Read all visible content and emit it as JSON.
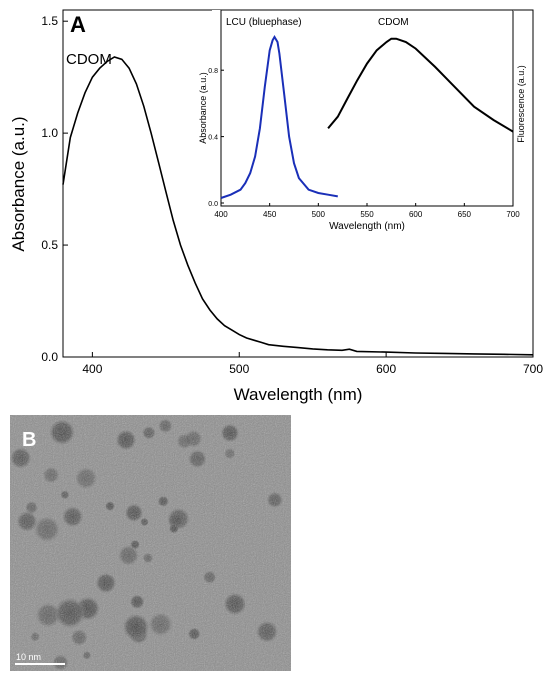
{
  "panel_a_label": "A",
  "panel_b_label": "B",
  "scale_bar_label": "10 nm",
  "chart_data": [
    {
      "type": "line",
      "panel": "A",
      "xlabel": "Wavelength (nm)",
      "ylabel": "Absorbance (a.u.)",
      "xlim": [
        380,
        700
      ],
      "ylim": [
        0,
        1.55
      ],
      "xticks": [
        400,
        500,
        600,
        700
      ],
      "yticks": [
        0.0,
        0.5,
        1.0,
        1.5
      ],
      "xtick_labels": [
        "400",
        "500",
        "600",
        "700"
      ],
      "ytick_labels": [
        "0.0",
        "0.5",
        "1.0",
        "1.5"
      ],
      "annotation": "CDOM",
      "series": [
        {
          "name": "CDOM",
          "color": "#000000",
          "x": [
            380,
            385,
            390,
            395,
            400,
            405,
            410,
            415,
            420,
            425,
            430,
            435,
            440,
            445,
            450,
            455,
            460,
            465,
            470,
            475,
            480,
            485,
            490,
            495,
            500,
            505,
            510,
            515,
            520,
            530,
            540,
            550,
            560,
            570,
            575,
            580,
            600,
            620,
            640,
            660,
            680,
            700
          ],
          "y": [
            0.77,
            0.98,
            1.09,
            1.18,
            1.25,
            1.29,
            1.32,
            1.34,
            1.33,
            1.29,
            1.22,
            1.12,
            1.0,
            0.87,
            0.74,
            0.61,
            0.5,
            0.41,
            0.33,
            0.26,
            0.21,
            0.17,
            0.14,
            0.12,
            0.1,
            0.085,
            0.075,
            0.065,
            0.055,
            0.048,
            0.042,
            0.036,
            0.032,
            0.03,
            0.035,
            0.025,
            0.022,
            0.018,
            0.016,
            0.014,
            0.012,
            0.01
          ]
        }
      ]
    },
    {
      "type": "line",
      "panel": "A-inset",
      "xlabel": "Wavelength (nm)",
      "ylabel_left": "Absorbance (a.u.)",
      "ylabel_right": "Fluorescence (a.u.)",
      "xlim": [
        400,
        700
      ],
      "ylim": [
        0,
        1.0
      ],
      "xticks": [
        400,
        450,
        500,
        550,
        600,
        650,
        700
      ],
      "yticks": [
        0.0,
        0.4,
        0.8
      ],
      "xtick_labels": [
        "400",
        "450",
        "500",
        "550",
        "600",
        "650",
        "700"
      ],
      "ytick_labels": [
        "0.0",
        "0.4",
        "0.8"
      ],
      "series": [
        {
          "name": "LCU (bluephase)",
          "color": "#1a2fb8",
          "x": [
            400,
            410,
            420,
            425,
            430,
            435,
            440,
            445,
            450,
            453,
            455,
            458,
            460,
            465,
            470,
            475,
            480,
            490,
            500,
            510,
            520
          ],
          "y": [
            0.03,
            0.05,
            0.08,
            0.12,
            0.18,
            0.28,
            0.45,
            0.7,
            0.92,
            0.98,
            1.0,
            0.97,
            0.9,
            0.65,
            0.4,
            0.24,
            0.15,
            0.08,
            0.06,
            0.05,
            0.04
          ]
        },
        {
          "name": "CDOM",
          "color": "#000000",
          "x": [
            510,
            520,
            530,
            540,
            550,
            560,
            570,
            575,
            580,
            590,
            600,
            620,
            640,
            660,
            680,
            700
          ],
          "y": [
            0.45,
            0.52,
            0.63,
            0.74,
            0.84,
            0.92,
            0.97,
            0.99,
            0.99,
            0.97,
            0.93,
            0.82,
            0.7,
            0.58,
            0.5,
            0.43
          ]
        }
      ]
    }
  ],
  "panel_b": {
    "description_colors": {
      "background": "#8c8c8c",
      "particles": "#454545"
    },
    "particle_count": 40
  }
}
